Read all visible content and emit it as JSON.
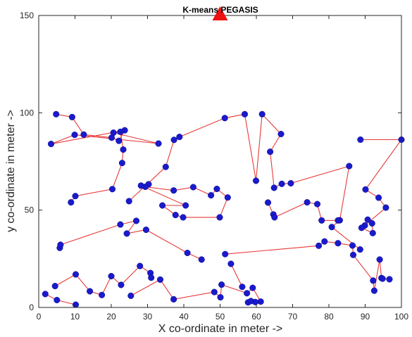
{
  "chart_data": {
    "type": "scatter",
    "title": "K-means PEGASIS",
    "xlabel": "X co-ordinate in meter ->",
    "ylabel": "y co-ordinate in meter ->",
    "xlim": [
      0,
      100
    ],
    "ylim": [
      0,
      150
    ],
    "xticks": [
      0,
      10,
      20,
      30,
      40,
      50,
      60,
      70,
      80,
      90,
      100
    ],
    "yticks": [
      0,
      50,
      100,
      150
    ],
    "grid": false,
    "colors": {
      "nodes": "#1a1acc",
      "chain": "#e83a3a",
      "sink": "#ee1111",
      "axes": "#262626"
    },
    "sink": {
      "x": 50,
      "y": 150,
      "marker": "triangle"
    },
    "series": [
      {
        "line": true,
        "points": [
          [
            4.8,
            99.3
          ],
          [
            9.2,
            97.8
          ],
          [
            12.4,
            88.8
          ],
          [
            20.1,
            87.2
          ],
          [
            22.1,
            85.6
          ],
          [
            23.7,
            91.0
          ],
          [
            3.4,
            84.0
          ],
          [
            9.9,
            88.7
          ],
          [
            33.0,
            84.2
          ],
          [
            20.6,
            89.8
          ],
          [
            22.5,
            90.2
          ],
          [
            23.3,
            81.1
          ],
          [
            23.0,
            74.2
          ],
          [
            20.3,
            60.8
          ],
          [
            10.1,
            57.2
          ],
          [
            8.9,
            54.0
          ]
        ]
      },
      {
        "line": true,
        "points": [
          [
            24.9,
            54.6
          ],
          [
            35.0,
            72.2
          ],
          [
            37.3,
            86.1
          ],
          [
            38.8,
            87.6
          ],
          [
            51.3,
            97.3
          ],
          [
            56.8,
            99.3
          ],
          [
            59.9,
            65.1
          ],
          [
            61.6,
            99.3
          ],
          [
            66.8,
            89.1
          ],
          [
            63.8,
            80.0
          ],
          [
            64.9,
            61.5
          ],
          [
            67.0,
            63.5
          ],
          [
            69.5,
            63.8
          ],
          [
            85.6,
            72.6
          ],
          [
            83.0,
            44.8
          ],
          [
            80.8,
            41.3
          ],
          [
            88.6,
            29.8
          ]
        ]
      },
      {
        "line": true,
        "points": [
          [
            30.3,
            63.3
          ],
          [
            29.4,
            62.0
          ],
          [
            37.2,
            60.1
          ],
          [
            42.6,
            61.8
          ],
          [
            47.5,
            57.6
          ],
          [
            49.1,
            60.9
          ],
          [
            52.1,
            56.5
          ],
          [
            49.9,
            46.3
          ],
          [
            39.8,
            46.3
          ],
          [
            37.7,
            47.5
          ],
          [
            34.1,
            52.4
          ],
          [
            40.5,
            52.4
          ],
          [
            28.2,
            62.6
          ]
        ]
      },
      {
        "line": true,
        "points": [
          [
            63.2,
            53.9
          ],
          [
            64.7,
            47.8
          ],
          [
            65.0,
            46.3
          ],
          [
            74.0,
            54.0
          ],
          [
            76.8,
            53.1
          ],
          [
            78.0,
            44.7
          ],
          [
            82.5,
            44.7
          ]
        ]
      },
      {
        "line": true,
        "points": [
          [
            88.7,
            86.2
          ],
          [
            100.0,
            86.2
          ],
          [
            90.1,
            60.6
          ],
          [
            93.7,
            56.4
          ],
          [
            95.7,
            51.3
          ],
          [
            89.9,
            42.1
          ],
          [
            90.7,
            45.1
          ],
          [
            91.9,
            43.2
          ],
          [
            92.1,
            38.2
          ],
          [
            89.0,
            40.9
          ]
        ]
      },
      {
        "line": true,
        "points": [
          [
            5.8,
            30.6
          ],
          [
            6.0,
            32.2
          ],
          [
            22.5,
            42.6
          ],
          [
            26.9,
            44.5
          ],
          [
            24.3,
            38.0
          ],
          [
            29.6,
            39.9
          ],
          [
            41.0,
            28.0
          ],
          [
            44.9,
            24.6
          ]
        ]
      },
      {
        "line": true,
        "points": [
          [
            25.4,
            6.0
          ],
          [
            33.5,
            14.3
          ],
          [
            37.2,
            4.2
          ],
          [
            48.4,
            7.9
          ],
          [
            50.1,
            5.2
          ],
          [
            50.4,
            11.7
          ],
          [
            57.4,
            7.3
          ],
          [
            59.0,
            10.1
          ],
          [
            61.2,
            3.0
          ],
          [
            59.7,
            2.8
          ],
          [
            57.7,
            2.6
          ],
          [
            58.5,
            3.3
          ]
        ]
      },
      {
        "line": true,
        "points": [
          [
            51.4,
            27.4
          ],
          [
            77.2,
            31.7
          ],
          [
            78.8,
            33.9
          ],
          [
            82.5,
            33.0
          ],
          [
            86.5,
            31.8
          ],
          [
            86.7,
            27.0
          ],
          [
            92.2,
            13.8
          ],
          [
            92.5,
            8.6
          ],
          [
            94.0,
            24.6
          ],
          [
            94.5,
            15.1
          ],
          [
            94.8,
            14.8
          ],
          [
            96.7,
            14.5
          ]
        ]
      },
      {
        "line": true,
        "points": [
          [
            1.8,
            6.9
          ],
          [
            5.0,
            3.8
          ],
          [
            10.2,
            1.4
          ]
        ]
      },
      {
        "line": true,
        "points": [
          [
            4.5,
            11.0
          ],
          [
            10.2,
            17.0
          ],
          [
            14.1,
            8.3
          ],
          [
            17.4,
            6.4
          ],
          [
            20.0,
            16.1
          ],
          [
            22.7,
            11.6
          ],
          [
            27.9,
            21.3
          ],
          [
            30.8,
            17.7
          ],
          [
            31.0,
            15.3
          ]
        ]
      },
      {
        "line": true,
        "points": [
          [
            53.0,
            22.4
          ],
          [
            56.1,
            10.6
          ]
        ]
      }
    ]
  }
}
